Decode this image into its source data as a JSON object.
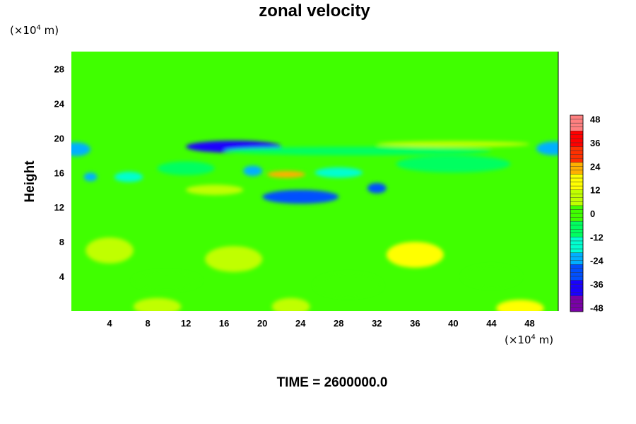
{
  "chart_data": {
    "type": "heatmap",
    "title": "zonal velocity",
    "ylabel": "Height",
    "xlabel": "",
    "x_unit_prefix": "(×10",
    "x_unit_exp": "4",
    "x_unit_suffix": " m)",
    "y_unit_prefix": "(×10",
    "y_unit_exp": "4",
    "y_unit_suffix": " m)",
    "xlim": [
      0,
      51
    ],
    "ylim": [
      0,
      30
    ],
    "x_ticks": [
      4,
      8,
      12,
      16,
      20,
      24,
      28,
      32,
      36,
      40,
      44,
      48
    ],
    "y_ticks": [
      4,
      8,
      12,
      16,
      20,
      24,
      28
    ],
    "colorbar": {
      "min": -50,
      "max": 50,
      "ticks": [
        48,
        36,
        24,
        12,
        0,
        -12,
        -24,
        -36,
        -48
      ],
      "palette": [
        "#7a00a8",
        "#1a00ff",
        "#0050ff",
        "#00b0ff",
        "#00ffd0",
        "#00ff60",
        "#40ff00",
        "#c0ff00",
        "#ffff00",
        "#ffb000",
        "#ff3000",
        "#ff0000",
        "#ff8080"
      ]
    },
    "background_value": 2,
    "features": [
      {
        "x": 17,
        "y": 19.0,
        "rx": 5.0,
        "ry": 0.7,
        "value": -42
      },
      {
        "x": 50.5,
        "y": 18.8,
        "rx": 1.8,
        "ry": 0.8,
        "value": -24
      },
      {
        "x": 0.5,
        "y": 18.7,
        "rx": 1.5,
        "ry": 0.8,
        "value": -20
      },
      {
        "x": 24,
        "y": 13.2,
        "rx": 4.0,
        "ry": 0.8,
        "value": -32
      },
      {
        "x": 32,
        "y": 14.2,
        "rx": 1.0,
        "ry": 0.6,
        "value": -28
      },
      {
        "x": 19,
        "y": 16.2,
        "rx": 1.0,
        "ry": 0.6,
        "value": -26
      },
      {
        "x": 2,
        "y": 15.5,
        "rx": 0.7,
        "ry": 0.5,
        "value": -22
      },
      {
        "x": 6,
        "y": 15.5,
        "rx": 1.5,
        "ry": 0.6,
        "value": -16
      },
      {
        "x": 28,
        "y": 16.0,
        "rx": 2.5,
        "ry": 0.6,
        "value": -14
      },
      {
        "x": 12,
        "y": 16.5,
        "rx": 3.0,
        "ry": 0.8,
        "value": -10
      },
      {
        "x": 40,
        "y": 17.0,
        "rx": 6.0,
        "ry": 1.0,
        "value": -10
      },
      {
        "x": 30,
        "y": 18.5,
        "rx": 14.0,
        "ry": 0.5,
        "value": -8
      },
      {
        "x": 22.5,
        "y": 15.8,
        "rx": 2.0,
        "ry": 0.4,
        "value": 20
      },
      {
        "x": 40,
        "y": 19.3,
        "rx": 8.0,
        "ry": 0.35,
        "value": 10
      },
      {
        "x": 15,
        "y": 14.0,
        "rx": 3.0,
        "ry": 0.6,
        "value": 8
      },
      {
        "x": 4,
        "y": 7.0,
        "rx": 2.5,
        "ry": 1.5,
        "value": 11
      },
      {
        "x": 17,
        "y": 6.0,
        "rx": 3.0,
        "ry": 1.5,
        "value": 11
      },
      {
        "x": 36,
        "y": 6.5,
        "rx": 3.0,
        "ry": 1.5,
        "value": 12
      },
      {
        "x": 47,
        "y": 0.3,
        "rx": 2.5,
        "ry": 1.0,
        "value": 15
      },
      {
        "x": 9,
        "y": 0.5,
        "rx": 2.5,
        "ry": 1.0,
        "value": 9
      },
      {
        "x": 23,
        "y": 0.5,
        "rx": 2.0,
        "ry": 1.0,
        "value": 9
      },
      {
        "x": 10,
        "y": 3.5,
        "rx": 3.5,
        "ry": 1.0,
        "value": -3
      },
      {
        "x": 29,
        "y": 3.0,
        "rx": 3.5,
        "ry": 1.3,
        "value": -3
      },
      {
        "x": 44,
        "y": 4.0,
        "rx": 3.0,
        "ry": 1.2,
        "value": -3
      }
    ]
  },
  "time_label": "TIME = 2600000.0"
}
